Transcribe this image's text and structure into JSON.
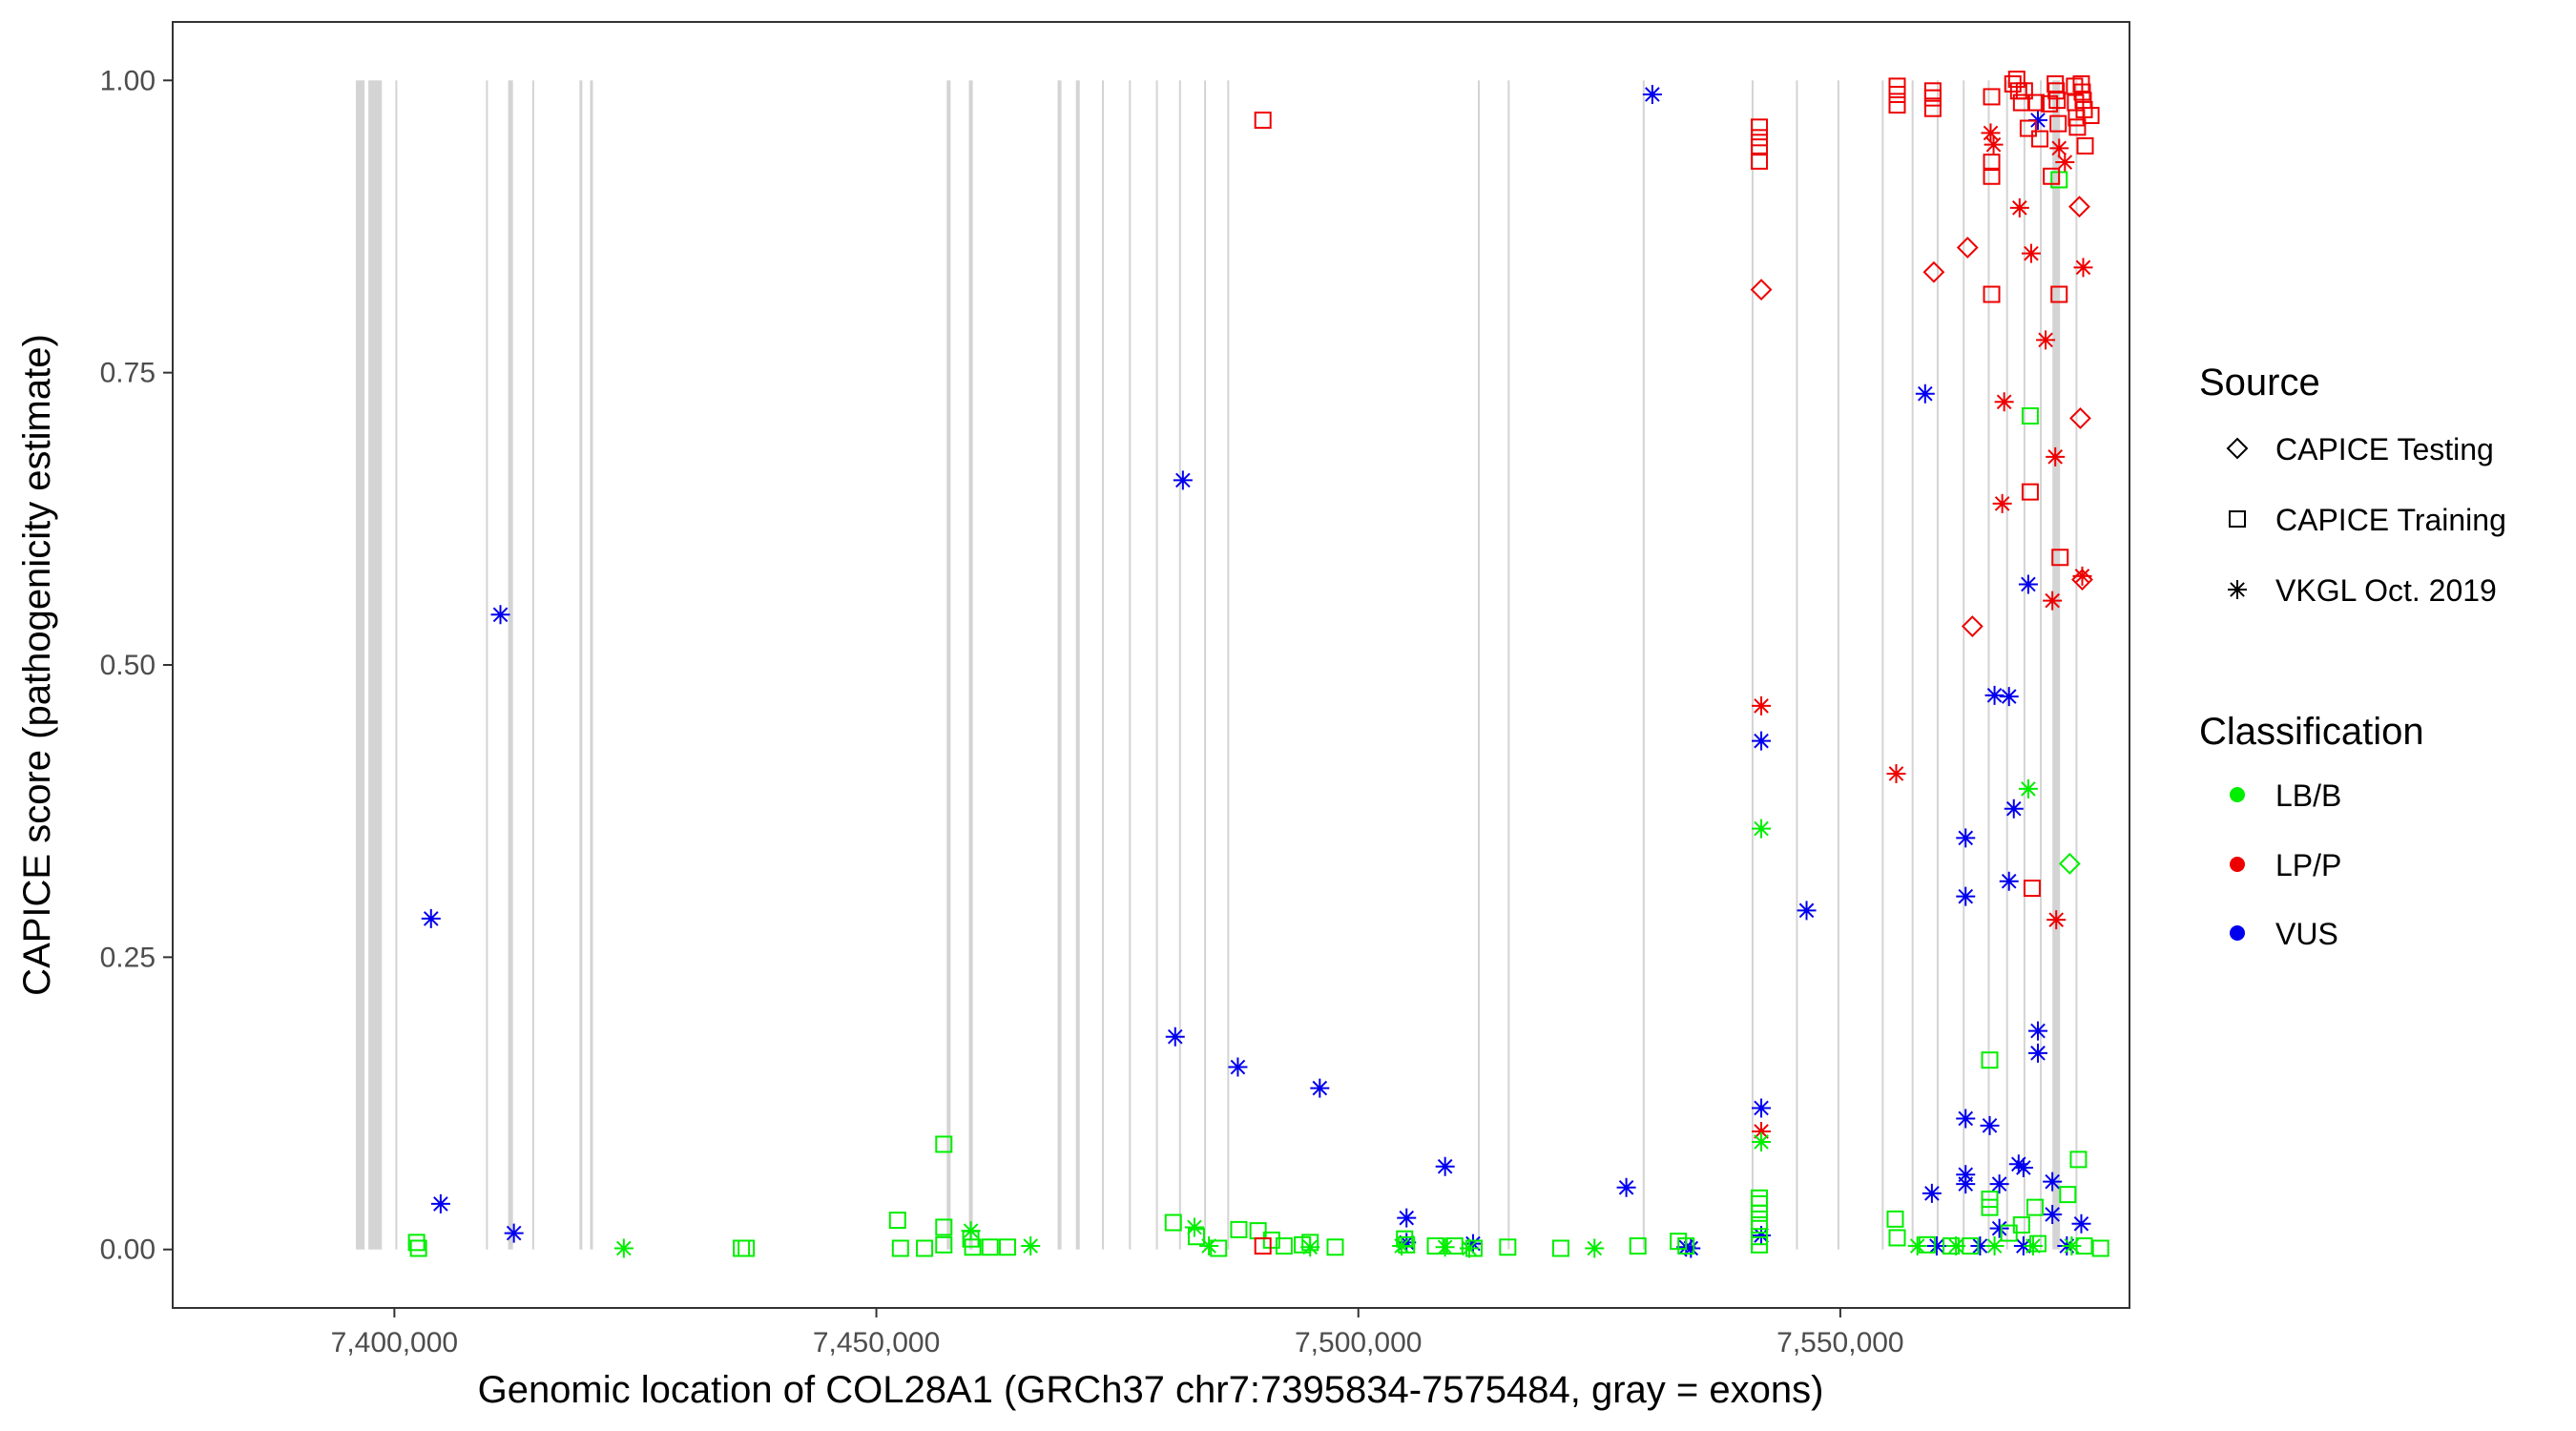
{
  "chart_data": {
    "type": "scatter",
    "title": "",
    "xlabel": "Genomic location of COL28A1 (GRCh37 chr7:7395834-7575484, gray = exons)",
    "ylabel": "CAPICE score (pathogenicity estimate)",
    "xlim": [
      7377000,
      7580000
    ],
    "ylim": [
      -0.05,
      1.05
    ],
    "x_ticks": [
      7400000,
      7450000,
      7500000,
      7550000
    ],
    "x_tick_labels": [
      "7,400,000",
      "7,450,000",
      "7,500,000",
      "7,550,000"
    ],
    "y_ticks": [
      0.0,
      0.25,
      0.5,
      0.75,
      1.0
    ],
    "y_tick_labels": [
      "0.00",
      "0.25",
      "0.50",
      "0.75",
      "1.00"
    ],
    "exons": [
      {
        "start": 7396000,
        "end": 7396900
      },
      {
        "start": 7397300,
        "end": 7398700
      },
      {
        "start": 7400100,
        "end": 7400300
      },
      {
        "start": 7409500,
        "end": 7409700
      },
      {
        "start": 7411800,
        "end": 7412300
      },
      {
        "start": 7414300,
        "end": 7414500
      },
      {
        "start": 7419200,
        "end": 7419500
      },
      {
        "start": 7420300,
        "end": 7420600
      },
      {
        "start": 7457300,
        "end": 7457700
      },
      {
        "start": 7459600,
        "end": 7460000
      },
      {
        "start": 7468800,
        "end": 7469200
      },
      {
        "start": 7470700,
        "end": 7471100
      },
      {
        "start": 7473400,
        "end": 7473600
      },
      {
        "start": 7476200,
        "end": 7476400
      },
      {
        "start": 7479000,
        "end": 7479200
      },
      {
        "start": 7481400,
        "end": 7481600
      },
      {
        "start": 7484000,
        "end": 7484200
      },
      {
        "start": 7486400,
        "end": 7486600
      },
      {
        "start": 7512400,
        "end": 7512600
      },
      {
        "start": 7515500,
        "end": 7515700
      },
      {
        "start": 7529500,
        "end": 7529700
      },
      {
        "start": 7540800,
        "end": 7541000
      },
      {
        "start": 7545400,
        "end": 7545600
      },
      {
        "start": 7549700,
        "end": 7549900
      },
      {
        "start": 7554300,
        "end": 7554500
      },
      {
        "start": 7557400,
        "end": 7557600
      },
      {
        "start": 7560000,
        "end": 7560200
      },
      {
        "start": 7562700,
        "end": 7562900
      },
      {
        "start": 7565300,
        "end": 7565500
      },
      {
        "start": 7567200,
        "end": 7567400
      },
      {
        "start": 7569000,
        "end": 7569200
      },
      {
        "start": 7570700,
        "end": 7570900
      },
      {
        "start": 7572000,
        "end": 7572800
      },
      {
        "start": 7574400,
        "end": 7574600
      }
    ],
    "legend": {
      "source_title": "Source",
      "source_entries": [
        {
          "label": "CAPICE Testing",
          "shape": "diamond"
        },
        {
          "label": "CAPICE Training",
          "shape": "square"
        },
        {
          "label": "VKGL Oct. 2019",
          "shape": "asterisk"
        }
      ],
      "class_title": "Classification",
      "class_entries": [
        {
          "label": "LB/B",
          "color": "#00EE00"
        },
        {
          "label": "LP/P",
          "color": "#EE0000"
        },
        {
          "label": "VUS",
          "color": "#0000EE"
        }
      ]
    },
    "colors": {
      "LB/B": "#00EE00",
      "LP/P": "#EE0000",
      "VUS": "#0000EE"
    },
    "series": [
      {
        "name": "VKGL Oct. 2019 / VUS",
        "source": "VKGL Oct. 2019",
        "classification": "VUS",
        "shape": "asterisk",
        "points": [
          [
            7411000,
            0.543
          ],
          [
            7403800,
            0.283
          ],
          [
            7404800,
            0.039
          ],
          [
            7412400,
            0.014
          ],
          [
            7481800,
            0.658
          ],
          [
            7481000,
            0.182
          ],
          [
            7487500,
            0.156
          ],
          [
            7496000,
            0.138
          ],
          [
            7505000,
            0.027
          ],
          [
            7505000,
            0.006
          ],
          [
            7509000,
            0.071
          ],
          [
            7511900,
            0.005
          ],
          [
            7527800,
            0.053
          ],
          [
            7530500,
            0.988
          ],
          [
            7541800,
            0.435
          ],
          [
            7541800,
            0.121
          ],
          [
            7541800,
            0.012
          ],
          [
            7546500,
            0.29
          ],
          [
            7534000,
            0.002
          ],
          [
            7534500,
            0.001
          ],
          [
            7558800,
            0.732
          ],
          [
            7559500,
            0.048
          ],
          [
            7563000,
            0.352
          ],
          [
            7563000,
            0.302
          ],
          [
            7563000,
            0.112
          ],
          [
            7563000,
            0.064
          ],
          [
            7563000,
            0.056
          ],
          [
            7565500,
            0.106
          ],
          [
            7566000,
            0.474
          ],
          [
            7567500,
            0.473
          ],
          [
            7567500,
            0.315
          ],
          [
            7568000,
            0.377
          ],
          [
            7568500,
            0.073
          ],
          [
            7569000,
            0.07
          ],
          [
            7569500,
            0.569
          ],
          [
            7570500,
            0.966
          ],
          [
            7570500,
            0.187
          ],
          [
            7570500,
            0.168
          ],
          [
            7566500,
            0.056
          ],
          [
            7566500,
            0.018
          ],
          [
            7572000,
            0.058
          ],
          [
            7572000,
            0.03
          ],
          [
            7573500,
            0.003
          ],
          [
            7575000,
            0.022
          ],
          [
            7560000,
            0.003
          ],
          [
            7564500,
            0.003
          ],
          [
            7569000,
            0.003
          ]
        ]
      },
      {
        "name": "VKGL Oct. 2019 / LP/P",
        "source": "VKGL Oct. 2019",
        "classification": "LP/P",
        "shape": "asterisk",
        "points": [
          [
            7541800,
            0.465
          ],
          [
            7541800,
            0.101
          ],
          [
            7555800,
            0.407
          ],
          [
            7565600,
            0.955
          ],
          [
            7565900,
            0.945
          ],
          [
            7568600,
            0.891
          ],
          [
            7569800,
            0.852
          ],
          [
            7571300,
            0.778
          ],
          [
            7567000,
            0.725
          ],
          [
            7572300,
            0.678
          ],
          [
            7566800,
            0.638
          ],
          [
            7572000,
            0.555
          ],
          [
            7575100,
            0.576
          ],
          [
            7575200,
            0.84
          ],
          [
            7572400,
            0.282
          ],
          [
            7572700,
            0.942
          ],
          [
            7573300,
            0.93
          ]
        ]
      },
      {
        "name": "VKGL Oct. 2019 / LB/B",
        "source": "VKGL Oct. 2019",
        "classification": "LB/B",
        "shape": "asterisk",
        "points": [
          [
            7423800,
            0.001
          ],
          [
            7459800,
            0.016
          ],
          [
            7466000,
            0.003
          ],
          [
            7483000,
            0.019
          ],
          [
            7484500,
            0.003
          ],
          [
            7495000,
            0.002
          ],
          [
            7504500,
            0.003
          ],
          [
            7509000,
            0.002
          ],
          [
            7511500,
            0.001
          ],
          [
            7524500,
            0.001
          ],
          [
            7541800,
            0.36
          ],
          [
            7541800,
            0.092
          ],
          [
            7569500,
            0.394
          ],
          [
            7558000,
            0.003
          ],
          [
            7562000,
            0.003
          ],
          [
            7566000,
            0.003
          ],
          [
            7570000,
            0.003
          ],
          [
            7574000,
            0.003
          ]
        ]
      },
      {
        "name": "CAPICE Training / LB/B",
        "source": "CAPICE Training",
        "classification": "LB/B",
        "shape": "square",
        "points": [
          [
            7402300,
            0.006
          ],
          [
            7402500,
            0.001
          ],
          [
            7436000,
            0.001
          ],
          [
            7436500,
            0.001
          ],
          [
            7452200,
            0.025
          ],
          [
            7452500,
            0.001
          ],
          [
            7455000,
            0.001
          ],
          [
            7457000,
            0.09
          ],
          [
            7457000,
            0.019
          ],
          [
            7457000,
            0.004
          ],
          [
            7459800,
            0.009
          ],
          [
            7460000,
            0.002
          ],
          [
            7461800,
            0.002
          ],
          [
            7463600,
            0.002
          ],
          [
            7480800,
            0.023
          ],
          [
            7483200,
            0.011
          ],
          [
            7485500,
            0.001
          ],
          [
            7487600,
            0.017
          ],
          [
            7489600,
            0.016
          ],
          [
            7491000,
            0.008
          ],
          [
            7492300,
            0.003
          ],
          [
            7494200,
            0.004
          ],
          [
            7495000,
            0.006
          ],
          [
            7497600,
            0.002
          ],
          [
            7504800,
            0.009
          ],
          [
            7505000,
            0.004
          ],
          [
            7508000,
            0.003
          ],
          [
            7510000,
            0.003
          ],
          [
            7512000,
            0.001
          ],
          [
            7515500,
            0.002
          ],
          [
            7521000,
            0.001
          ],
          [
            7529000,
            0.003
          ],
          [
            7533200,
            0.007
          ],
          [
            7534000,
            0.003
          ],
          [
            7541600,
            0.044
          ],
          [
            7541600,
            0.039
          ],
          [
            7541600,
            0.031
          ],
          [
            7541600,
            0.021
          ],
          [
            7541600,
            0.011
          ],
          [
            7541600,
            0.004
          ],
          [
            7555700,
            0.026
          ],
          [
            7555900,
            0.01
          ],
          [
            7559000,
            0.004
          ],
          [
            7561500,
            0.003
          ],
          [
            7563500,
            0.003
          ],
          [
            7565500,
            0.162
          ],
          [
            7565500,
            0.043
          ],
          [
            7565500,
            0.036
          ],
          [
            7567500,
            0.014
          ],
          [
            7568800,
            0.021
          ],
          [
            7569700,
            0.713
          ],
          [
            7570200,
            0.036
          ],
          [
            7570500,
            0.005
          ],
          [
            7572700,
            0.915
          ],
          [
            7573600,
            0.047
          ],
          [
            7574700,
            0.077
          ],
          [
            7575300,
            0.003
          ],
          [
            7577000,
            0.001
          ]
        ]
      },
      {
        "name": "CAPICE Training / LP/P",
        "source": "CAPICE Training",
        "classification": "LP/P",
        "shape": "square",
        "points": [
          [
            7490100,
            0.966
          ],
          [
            7490100,
            0.003
          ],
          [
            7541600,
            0.96
          ],
          [
            7541600,
            0.951
          ],
          [
            7541600,
            0.943
          ],
          [
            7541600,
            0.931
          ],
          [
            7555900,
            0.995
          ],
          [
            7555900,
            0.988
          ],
          [
            7555900,
            0.979
          ],
          [
            7559600,
            0.991
          ],
          [
            7559600,
            0.985
          ],
          [
            7559600,
            0.976
          ],
          [
            7565700,
            0.986
          ],
          [
            7565700,
            0.93
          ],
          [
            7565700,
            0.918
          ],
          [
            7565700,
            0.817
          ],
          [
            7567900,
            0.997
          ],
          [
            7568300,
            1.001
          ],
          [
            7568500,
            0.991
          ],
          [
            7568800,
            0.981
          ],
          [
            7569100,
            0.991
          ],
          [
            7569500,
            0.959
          ],
          [
            7569700,
            0.648
          ],
          [
            7569900,
            0.309
          ],
          [
            7570300,
            0.981
          ],
          [
            7570700,
            0.95
          ],
          [
            7571700,
            0.98
          ],
          [
            7571900,
            0.918
          ],
          [
            7572300,
            0.997
          ],
          [
            7572400,
            0.991
          ],
          [
            7572500,
            0.983
          ],
          [
            7572600,
            0.963
          ],
          [
            7572700,
            0.817
          ],
          [
            7572800,
            0.592
          ],
          [
            7574300,
            0.995
          ],
          [
            7574400,
            0.981
          ],
          [
            7574500,
            0.968
          ],
          [
            7574600,
            0.96
          ],
          [
            7575000,
            0.997
          ],
          [
            7575100,
            0.99
          ],
          [
            7575200,
            0.983
          ],
          [
            7575300,
            0.975
          ],
          [
            7575400,
            0.944
          ],
          [
            7576000,
            0.97
          ]
        ]
      },
      {
        "name": "CAPICE Testing / LP/P",
        "source": "CAPICE Testing",
        "classification": "LP/P",
        "shape": "diamond",
        "points": [
          [
            7541800,
            0.821
          ],
          [
            7559700,
            0.836
          ],
          [
            7563200,
            0.857
          ],
          [
            7563700,
            0.533
          ],
          [
            7574800,
            0.892
          ],
          [
            7574900,
            0.711
          ],
          [
            7575100,
            0.573
          ]
        ]
      },
      {
        "name": "CAPICE Testing / LB/B",
        "source": "CAPICE Testing",
        "classification": "LB/B",
        "shape": "diamond",
        "points": [
          [
            7573800,
            0.33
          ]
        ]
      }
    ]
  }
}
